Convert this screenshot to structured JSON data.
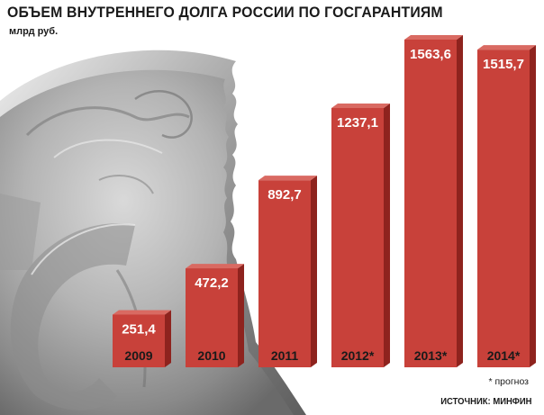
{
  "header": {
    "title": "ОБЪЕМ ВНУТРЕННЕГО ДОЛГА РОССИИ ПО ГОСГАРАНТИЯМ",
    "unit": "млрд руб."
  },
  "footer": {
    "note": "* прогноз",
    "source": "ИСТОЧНИК: МИНФИН"
  },
  "colors": {
    "bar": "#c8413a",
    "bar_dark": "#8e231e",
    "text": "#1a1a1a",
    "bar_text": "#ffffff"
  },
  "chart_data": {
    "type": "bar",
    "title": "ОБЪЕМ ВНУТРЕННЕГО ДОЛГА РОССИИ ПО ГОСГАРАНТИЯМ",
    "ylabel": "млрд руб.",
    "xlabel": "",
    "categories": [
      "2009",
      "2010",
      "2011",
      "2012*",
      "2013*",
      "2014*"
    ],
    "values": [
      251.4,
      472.2,
      892.7,
      1237.1,
      1563.6,
      1515.7
    ],
    "value_labels": [
      "251,4",
      "472,2",
      "892,7",
      "1237,1",
      "1563,6",
      "1515,7"
    ],
    "ylim": [
      0,
      1563.6
    ],
    "grid": false,
    "legend": "none"
  }
}
